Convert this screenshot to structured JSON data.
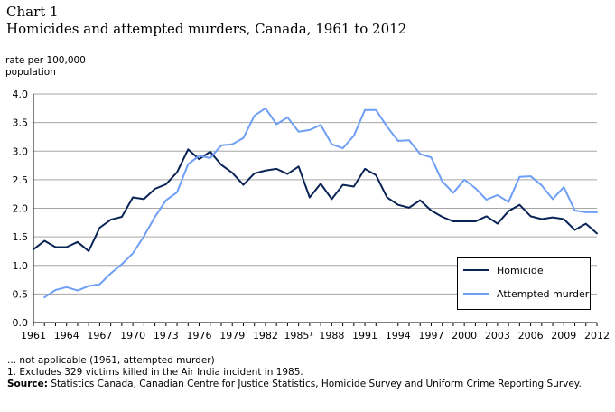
{
  "title": {
    "line1": "Chart 1",
    "line2": "Homicides and attempted murders, Canada, 1961 to 2012"
  },
  "ylabel": {
    "line1": "rate per 100,000",
    "line2": "population"
  },
  "footer": {
    "note1": "... not applicable (1961, attempted murder)",
    "note2": "1. Excludes 329 victims killed in the Air India incident in 1985.",
    "source_label": "Source:",
    "source_text": " Statistics Canada, Canadian Centre for Justice Statistics, Homicide Survey and Uniform Crime Reporting Survey."
  },
  "colors": {
    "homicide": "#0a2456",
    "attempted": "#6f9ef5",
    "grid": "#a6a6a6"
  },
  "chart_data": {
    "type": "line",
    "x": [
      1961,
      1962,
      1963,
      1964,
      1965,
      1966,
      1967,
      1968,
      1969,
      1970,
      1971,
      1972,
      1973,
      1974,
      1975,
      1976,
      1977,
      1978,
      1979,
      1980,
      1981,
      1982,
      1983,
      1984,
      1985,
      1986,
      1987,
      1988,
      1989,
      1990,
      1991,
      1992,
      1993,
      1994,
      1995,
      1996,
      1997,
      1998,
      1999,
      2000,
      2001,
      2002,
      2003,
      2004,
      2005,
      2006,
      2007,
      2008,
      2009,
      2010,
      2011,
      2012
    ],
    "xticks": [
      "1961",
      "1964",
      "1967",
      "1970",
      "1973",
      "1976",
      "1979",
      "1982",
      "1985¹",
      "1988",
      "1991",
      "1994",
      "1997",
      "2000",
      "2003",
      "2006",
      "2009",
      "2012"
    ],
    "xtick_values": [
      1961,
      1964,
      1967,
      1970,
      1973,
      1976,
      1979,
      1982,
      1985,
      1988,
      1991,
      1994,
      1997,
      2000,
      2003,
      2006,
      2009,
      2012
    ],
    "yticks": [
      "0.0",
      "0.5",
      "1.0",
      "1.5",
      "2.0",
      "2.5",
      "3.0",
      "3.5",
      "4.0"
    ],
    "ylim": [
      0,
      4.0
    ],
    "grid": true,
    "legend_position": "bottom-right",
    "series": [
      {
        "name": "Homicide",
        "values": [
          1.28,
          1.43,
          1.32,
          1.32,
          1.41,
          1.25,
          1.66,
          1.8,
          1.85,
          2.19,
          2.16,
          2.34,
          2.42,
          2.63,
          3.03,
          2.86,
          2.99,
          2.76,
          2.62,
          2.41,
          2.61,
          2.66,
          2.69,
          2.6,
          2.73,
          2.19,
          2.43,
          2.16,
          2.41,
          2.38,
          2.69,
          2.58,
          2.19,
          2.06,
          2.01,
          2.14,
          1.96,
          1.85,
          1.77,
          1.77,
          1.77,
          1.86,
          1.73,
          1.95,
          2.06,
          1.86,
          1.81,
          1.84,
          1.81,
          1.62,
          1.73,
          1.56
        ]
      },
      {
        "name": "Attempted murder",
        "values": [
          null,
          0.44,
          0.57,
          0.62,
          0.56,
          0.64,
          0.67,
          0.86,
          1.02,
          1.21,
          1.51,
          1.85,
          2.14,
          2.28,
          2.77,
          2.92,
          2.88,
          3.1,
          3.12,
          3.23,
          3.62,
          3.75,
          3.47,
          3.59,
          3.34,
          3.37,
          3.46,
          3.12,
          3.05,
          3.27,
          3.72,
          3.72,
          3.43,
          3.18,
          3.19,
          2.95,
          2.89,
          2.47,
          2.27,
          2.5,
          2.35,
          2.15,
          2.23,
          2.11,
          2.55,
          2.56,
          2.4,
          2.16,
          2.37,
          1.96,
          1.93,
          1.93
        ]
      }
    ]
  }
}
